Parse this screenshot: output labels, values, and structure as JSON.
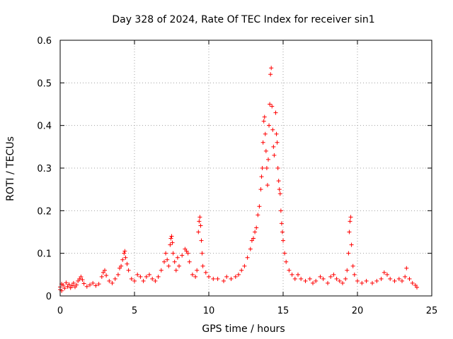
{
  "chart_data": {
    "type": "scatter",
    "title": "Day 328 of 2024, Rate Of TEC Index for receiver sin1",
    "xlabel": "GPS time / hours",
    "ylabel": "ROTI / TECUs",
    "xlim": [
      0,
      25
    ],
    "ylim": [
      0,
      0.6
    ],
    "grid": true,
    "marker": "+",
    "xticks": [
      0,
      5,
      10,
      15,
      20,
      25
    ],
    "xtick_labels": [
      "0",
      "5",
      "10",
      "15",
      "20",
      "25"
    ],
    "yticks": [
      0,
      0.1,
      0.2,
      0.3,
      0.4,
      0.5,
      0.6
    ],
    "ytick_labels": [
      "0",
      "0.1",
      "0.2",
      "0.3",
      "0.4",
      "0.5",
      "0.6"
    ],
    "series": [
      {
        "name": "sin1",
        "color": "#ff0000",
        "points": [
          [
            0.0,
            0.015
          ],
          [
            0.0,
            0.021
          ],
          [
            0.1,
            0.028
          ],
          [
            0.1,
            0.012
          ],
          [
            0.2,
            0.025
          ],
          [
            0.3,
            0.018
          ],
          [
            0.4,
            0.031
          ],
          [
            0.5,
            0.022
          ],
          [
            0.6,
            0.027
          ],
          [
            0.7,
            0.019
          ],
          [
            0.8,
            0.024
          ],
          [
            0.9,
            0.03
          ],
          [
            1.0,
            0.021
          ],
          [
            1.1,
            0.026
          ],
          [
            1.2,
            0.035
          ],
          [
            1.3,
            0.04
          ],
          [
            1.4,
            0.045
          ],
          [
            1.5,
            0.038
          ],
          [
            1.6,
            0.029
          ],
          [
            1.8,
            0.022
          ],
          [
            2.0,
            0.026
          ],
          [
            2.2,
            0.03
          ],
          [
            2.4,
            0.024
          ],
          [
            2.6,
            0.028
          ],
          [
            2.8,
            0.045
          ],
          [
            2.9,
            0.055
          ],
          [
            3.0,
            0.06
          ],
          [
            3.1,
            0.048
          ],
          [
            3.3,
            0.035
          ],
          [
            3.5,
            0.03
          ],
          [
            3.7,
            0.04
          ],
          [
            3.9,
            0.05
          ],
          [
            4.0,
            0.065
          ],
          [
            4.1,
            0.07
          ],
          [
            4.2,
            0.085
          ],
          [
            4.3,
            0.1
          ],
          [
            4.35,
            0.105
          ],
          [
            4.4,
            0.09
          ],
          [
            4.5,
            0.075
          ],
          [
            4.6,
            0.06
          ],
          [
            4.8,
            0.04
          ],
          [
            5.0,
            0.035
          ],
          [
            5.2,
            0.05
          ],
          [
            5.4,
            0.045
          ],
          [
            5.6,
            0.035
          ],
          [
            5.8,
            0.045
          ],
          [
            6.0,
            0.05
          ],
          [
            6.2,
            0.04
          ],
          [
            6.4,
            0.035
          ],
          [
            6.6,
            0.045
          ],
          [
            6.8,
            0.06
          ],
          [
            7.0,
            0.08
          ],
          [
            7.1,
            0.1
          ],
          [
            7.2,
            0.085
          ],
          [
            7.3,
            0.07
          ],
          [
            7.4,
            0.12
          ],
          [
            7.45,
            0.135
          ],
          [
            7.5,
            0.14
          ],
          [
            7.55,
            0.125
          ],
          [
            7.6,
            0.1
          ],
          [
            7.7,
            0.08
          ],
          [
            7.8,
            0.06
          ],
          [
            7.9,
            0.09
          ],
          [
            8.0,
            0.07
          ],
          [
            8.2,
            0.095
          ],
          [
            8.4,
            0.11
          ],
          [
            8.5,
            0.105
          ],
          [
            8.6,
            0.1
          ],
          [
            8.7,
            0.08
          ],
          [
            8.9,
            0.05
          ],
          [
            9.1,
            0.045
          ],
          [
            9.2,
            0.06
          ],
          [
            9.3,
            0.15
          ],
          [
            9.35,
            0.175
          ],
          [
            9.4,
            0.185
          ],
          [
            9.45,
            0.165
          ],
          [
            9.5,
            0.13
          ],
          [
            9.55,
            0.1
          ],
          [
            9.6,
            0.07
          ],
          [
            9.8,
            0.055
          ],
          [
            10.0,
            0.045
          ],
          [
            10.3,
            0.04
          ],
          [
            10.6,
            0.04
          ],
          [
            11.0,
            0.035
          ],
          [
            11.2,
            0.045
          ],
          [
            11.5,
            0.04
          ],
          [
            11.8,
            0.045
          ],
          [
            12.0,
            0.05
          ],
          [
            12.2,
            0.06
          ],
          [
            12.4,
            0.07
          ],
          [
            12.6,
            0.09
          ],
          [
            12.8,
            0.11
          ],
          [
            12.9,
            0.13
          ],
          [
            13.0,
            0.135
          ],
          [
            13.1,
            0.15
          ],
          [
            13.2,
            0.16
          ],
          [
            13.3,
            0.19
          ],
          [
            13.4,
            0.21
          ],
          [
            13.5,
            0.25
          ],
          [
            13.55,
            0.28
          ],
          [
            13.6,
            0.3
          ],
          [
            13.65,
            0.36
          ],
          [
            13.7,
            0.41
          ],
          [
            13.75,
            0.42
          ],
          [
            13.8,
            0.38
          ],
          [
            13.85,
            0.34
          ],
          [
            13.9,
            0.3
          ],
          [
            13.95,
            0.26
          ],
          [
            14.0,
            0.32
          ],
          [
            14.05,
            0.4
          ],
          [
            14.1,
            0.45
          ],
          [
            14.15,
            0.52
          ],
          [
            14.2,
            0.535
          ],
          [
            14.25,
            0.445
          ],
          [
            14.3,
            0.39
          ],
          [
            14.35,
            0.35
          ],
          [
            14.4,
            0.33
          ],
          [
            14.5,
            0.43
          ],
          [
            14.55,
            0.38
          ],
          [
            14.6,
            0.36
          ],
          [
            14.65,
            0.3
          ],
          [
            14.7,
            0.27
          ],
          [
            14.75,
            0.25
          ],
          [
            14.8,
            0.24
          ],
          [
            14.85,
            0.2
          ],
          [
            14.9,
            0.17
          ],
          [
            14.95,
            0.15
          ],
          [
            15.0,
            0.13
          ],
          [
            15.1,
            0.1
          ],
          [
            15.2,
            0.08
          ],
          [
            15.4,
            0.06
          ],
          [
            15.6,
            0.05
          ],
          [
            15.8,
            0.04
          ],
          [
            16.0,
            0.05
          ],
          [
            16.2,
            0.04
          ],
          [
            16.5,
            0.035
          ],
          [
            16.8,
            0.04
          ],
          [
            17.0,
            0.03
          ],
          [
            17.2,
            0.035
          ],
          [
            17.5,
            0.045
          ],
          [
            17.7,
            0.04
          ],
          [
            18.0,
            0.03
          ],
          [
            18.2,
            0.045
          ],
          [
            18.4,
            0.05
          ],
          [
            18.6,
            0.04
          ],
          [
            18.8,
            0.035
          ],
          [
            19.0,
            0.03
          ],
          [
            19.2,
            0.04
          ],
          [
            19.3,
            0.06
          ],
          [
            19.4,
            0.1
          ],
          [
            19.45,
            0.15
          ],
          [
            19.5,
            0.175
          ],
          [
            19.55,
            0.185
          ],
          [
            19.6,
            0.12
          ],
          [
            19.7,
            0.07
          ],
          [
            19.8,
            0.05
          ],
          [
            20.0,
            0.035
          ],
          [
            20.3,
            0.03
          ],
          [
            20.6,
            0.035
          ],
          [
            21.0,
            0.03
          ],
          [
            21.3,
            0.035
          ],
          [
            21.6,
            0.04
          ],
          [
            21.8,
            0.055
          ],
          [
            22.0,
            0.05
          ],
          [
            22.2,
            0.04
          ],
          [
            22.5,
            0.035
          ],
          [
            22.8,
            0.04
          ],
          [
            23.0,
            0.035
          ],
          [
            23.2,
            0.045
          ],
          [
            23.3,
            0.065
          ],
          [
            23.5,
            0.04
          ],
          [
            23.7,
            0.03
          ],
          [
            23.9,
            0.025
          ],
          [
            24.0,
            0.02
          ]
        ]
      }
    ]
  }
}
